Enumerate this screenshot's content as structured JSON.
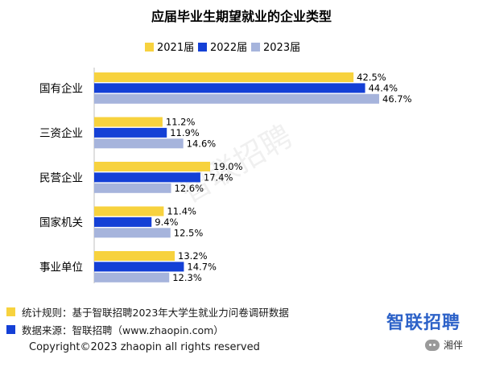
{
  "chart_data": {
    "type": "bar",
    "orientation": "horizontal",
    "title": "应届毕业生期望就业的企业类型",
    "categories": [
      "国有企业",
      "三资企业",
      "民营企业",
      "国家机关",
      "事业单位"
    ],
    "series": [
      {
        "name": "2021届",
        "color": "#f7d23e",
        "values": [
          42.5,
          11.2,
          19.0,
          11.4,
          13.2
        ],
        "labels": [
          "42.5%",
          "11.2%",
          "19.0%",
          "11.4%",
          "13.2%"
        ]
      },
      {
        "name": "2022届",
        "color": "#1440d6",
        "values": [
          44.4,
          11.9,
          17.4,
          9.4,
          14.7
        ],
        "labels": [
          "44.4%",
          "11.9%",
          "17.4%",
          "9.4%",
          "14.7%"
        ]
      },
      {
        "name": "2023届",
        "color": "#a6b4dc",
        "values": [
          46.7,
          14.6,
          12.6,
          12.5,
          12.3
        ],
        "labels": [
          "46.7%",
          "14.6%",
          "12.6%",
          "12.5%",
          "12.3%"
        ]
      }
    ],
    "xlim": [
      0,
      50
    ],
    "legend_position": "top",
    "grid": false
  },
  "watermark": "智联招聘",
  "footer": {
    "rule_label": "统计规则：基于智联招聘2023年大学生就业力问卷调研数据",
    "rule_color": "#f7d23e",
    "source_label": "数据来源：智联招聘（www.zhaopin.com）",
    "source_color": "#1440d6"
  },
  "brand": "智联招聘",
  "copyright": "Copyright©2023 zhaopin all rights reserved",
  "badge": "湘伴"
}
